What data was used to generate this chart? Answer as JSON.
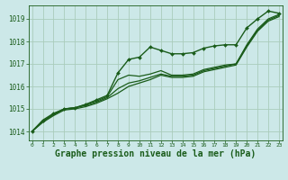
{
  "bg_color": "#cce8e8",
  "grid_color": "#aaccbb",
  "line_color": "#1a5c1a",
  "marker_color": "#1a5c1a",
  "xlabel": "Graphe pression niveau de la mer (hPa)",
  "xlabel_fontsize": 7,
  "yticks": [
    1014,
    1015,
    1016,
    1017,
    1018,
    1019
  ],
  "xticks": [
    0,
    1,
    2,
    3,
    4,
    5,
    6,
    7,
    8,
    9,
    10,
    11,
    12,
    13,
    14,
    15,
    16,
    17,
    18,
    19,
    20,
    21,
    22,
    23
  ],
  "xlim": [
    -0.3,
    23.3
  ],
  "ylim": [
    1013.6,
    1019.6
  ],
  "series": [
    {
      "y": [
        1014.0,
        1014.5,
        1014.8,
        1015.0,
        1015.05,
        1015.2,
        1015.4,
        1015.6,
        1016.6,
        1017.2,
        1017.3,
        1017.75,
        1017.6,
        1017.45,
        1017.45,
        1017.5,
        1017.7,
        1017.8,
        1017.85,
        1017.85,
        1018.6,
        1019.0,
        1019.35,
        1019.25
      ],
      "marker": true,
      "lw": 1.0
    },
    {
      "y": [
        1014.0,
        1014.45,
        1014.75,
        1015.0,
        1015.05,
        1015.2,
        1015.35,
        1015.55,
        1016.3,
        1016.5,
        1016.45,
        1016.55,
        1016.7,
        1016.5,
        1016.5,
        1016.55,
        1016.75,
        1016.85,
        1016.95,
        1017.0,
        1017.85,
        1018.55,
        1019.0,
        1019.2
      ],
      "marker": false,
      "lw": 0.9
    },
    {
      "y": [
        1014.0,
        1014.45,
        1014.75,
        1015.0,
        1015.05,
        1015.15,
        1015.3,
        1015.5,
        1015.9,
        1016.15,
        1016.25,
        1016.4,
        1016.55,
        1016.45,
        1016.45,
        1016.5,
        1016.7,
        1016.8,
        1016.9,
        1017.0,
        1017.8,
        1018.5,
        1018.95,
        1019.15
      ],
      "marker": false,
      "lw": 0.9
    },
    {
      "y": [
        1014.0,
        1014.4,
        1014.7,
        1014.95,
        1015.0,
        1015.1,
        1015.25,
        1015.45,
        1015.7,
        1016.0,
        1016.15,
        1016.3,
        1016.5,
        1016.4,
        1016.4,
        1016.45,
        1016.65,
        1016.75,
        1016.85,
        1016.95,
        1017.75,
        1018.45,
        1018.9,
        1019.1
      ],
      "marker": false,
      "lw": 0.9
    }
  ]
}
